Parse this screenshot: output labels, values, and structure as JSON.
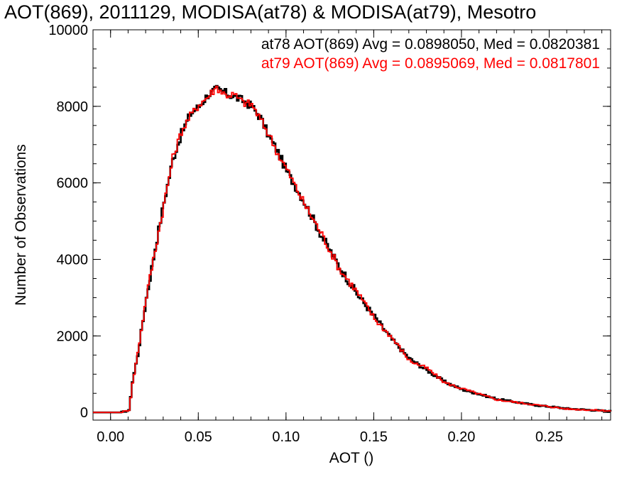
{
  "chart_data": {
    "type": "line",
    "title": "AOT(869), 2011129, MODISA(at78) & MODISA(at79), Mesotro",
    "xlabel": "AOT ()",
    "ylabel": "Number of Observations",
    "xlim": [
      -0.01,
      0.285
    ],
    "ylim": [
      -200,
      10000
    ],
    "xticks": [
      0.0,
      0.05,
      0.1,
      0.15,
      0.2,
      0.25
    ],
    "xtick_labels": [
      "0.00",
      "0.05",
      "0.10",
      "0.15",
      "0.20",
      "0.25"
    ],
    "yticks": [
      0,
      2000,
      4000,
      6000,
      8000,
      10000
    ],
    "ytick_labels": [
      "0",
      "2000",
      "4000",
      "6000",
      "8000",
      "10000"
    ],
    "x_minor_step": 0.01,
    "y_minor_step": 500,
    "grid": false,
    "legend_position": "top-right",
    "annotations": [
      {
        "text": "at78 AOT(869) Avg = 0.0898050, Med = 0.0820381",
        "color": "#000000"
      },
      {
        "text": "at79 AOT(869) Avg = 0.0895069, Med = 0.0817801",
        "color": "#ff0000"
      }
    ],
    "x": [
      -0.01,
      0.0,
      0.005,
      0.01,
      0.012,
      0.015,
      0.02,
      0.025,
      0.03,
      0.035,
      0.04,
      0.045,
      0.05,
      0.055,
      0.06,
      0.065,
      0.07,
      0.075,
      0.08,
      0.085,
      0.09,
      0.095,
      0.1,
      0.11,
      0.12,
      0.13,
      0.14,
      0.15,
      0.16,
      0.17,
      0.18,
      0.19,
      0.2,
      0.22,
      0.24,
      0.26,
      0.285
    ],
    "series": [
      {
        "name": "at78",
        "color": "#000000",
        "values": [
          0,
          0,
          0,
          50,
          800,
          1500,
          3000,
          4300,
          5500,
          6600,
          7300,
          7800,
          8000,
          8300,
          8450,
          8350,
          8250,
          8150,
          8000,
          7700,
          7200,
          6800,
          6300,
          5500,
          4600,
          3800,
          3100,
          2500,
          1900,
          1400,
          1100,
          800,
          600,
          350,
          200,
          100,
          30
        ]
      },
      {
        "name": "at79",
        "color": "#ff0000",
        "values": [
          0,
          0,
          0,
          60,
          750,
          1550,
          3050,
          4250,
          5450,
          6650,
          7350,
          7750,
          8050,
          8250,
          8500,
          8300,
          8300,
          8100,
          8050,
          7650,
          7250,
          6750,
          6350,
          5450,
          4650,
          3750,
          3150,
          2450,
          1950,
          1350,
          1150,
          780,
          620,
          330,
          210,
          90,
          40
        ]
      }
    ]
  }
}
